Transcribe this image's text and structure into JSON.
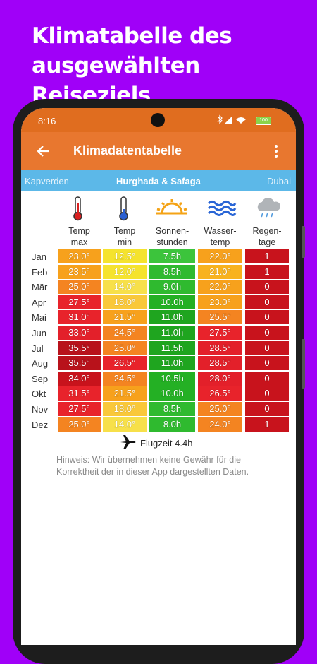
{
  "promo": {
    "headline": [
      "Klimatabelle des",
      "ausgewählten Reiseziels"
    ]
  },
  "status_bar": {
    "time": "8:16",
    "battery": "100"
  },
  "app_bar": {
    "title": "Klimadatentabelle"
  },
  "tabs": [
    "Kapverden",
    "Hurghada & Safaga",
    "Dubai"
  ],
  "table": {
    "columns": [
      [
        "Temp",
        "max"
      ],
      [
        "Temp",
        "min"
      ],
      [
        "Sonnen-",
        "stunden"
      ],
      [
        "Wasser-",
        "temp"
      ],
      [
        "Regen-",
        "tage"
      ]
    ],
    "rows": [
      {
        "month": "Jan",
        "cells": [
          "23.0°",
          "12.5°",
          "7.5h",
          "22.0°",
          "1"
        ],
        "colors": [
          "#f7a11c",
          "#f5e32e",
          "#3cc43c",
          "#f7a11c",
          "#c8131c"
        ]
      },
      {
        "month": "Feb",
        "cells": [
          "23.5°",
          "12.0°",
          "8.5h",
          "21.0°",
          "1"
        ],
        "colors": [
          "#f7a11c",
          "#f5e32e",
          "#2fba2f",
          "#f8b21e",
          "#c8131c"
        ]
      },
      {
        "month": "Mär",
        "cells": [
          "25.0°",
          "14.0°",
          "9.0h",
          "22.0°",
          "0"
        ],
        "colors": [
          "#f48421",
          "#f7e04a",
          "#2fba2f",
          "#f7a11c",
          "#c8131c"
        ]
      },
      {
        "month": "Apr",
        "cells": [
          "27.5°",
          "18.0°",
          "10.0h",
          "23.0°",
          "0"
        ],
        "colors": [
          "#e8232b",
          "#f9c83a",
          "#24b024",
          "#f7a11c",
          "#c8131c"
        ]
      },
      {
        "month": "Mai",
        "cells": [
          "31.0°",
          "21.5°",
          "11.0h",
          "25.5°",
          "0"
        ],
        "colors": [
          "#e8232b",
          "#f7a11c",
          "#1fa51f",
          "#f48421",
          "#c8131c"
        ]
      },
      {
        "month": "Jun",
        "cells": [
          "33.0°",
          "24.5°",
          "11.0h",
          "27.5°",
          "0"
        ],
        "colors": [
          "#e3202a",
          "#f48421",
          "#1fa51f",
          "#e8232b",
          "#c8131c"
        ]
      },
      {
        "month": "Jul",
        "cells": [
          "35.5°",
          "25.0°",
          "11.5h",
          "28.5°",
          "0"
        ],
        "colors": [
          "#b8121b",
          "#f48421",
          "#1fa51f",
          "#e3202a",
          "#c8131c"
        ]
      },
      {
        "month": "Aug",
        "cells": [
          "35.5°",
          "26.5°",
          "11.0h",
          "28.5°",
          "0"
        ],
        "colors": [
          "#b8121b",
          "#e8232b",
          "#1fa51f",
          "#e3202a",
          "#c8131c"
        ]
      },
      {
        "month": "Sep",
        "cells": [
          "34.0°",
          "24.5°",
          "10.5h",
          "28.0°",
          "0"
        ],
        "colors": [
          "#c8131c",
          "#f48421",
          "#24b024",
          "#e3202a",
          "#c8131c"
        ]
      },
      {
        "month": "Okt",
        "cells": [
          "31.5°",
          "21.5°",
          "10.0h",
          "26.5°",
          "0"
        ],
        "colors": [
          "#e8232b",
          "#f7a11c",
          "#24b024",
          "#e8232b",
          "#c8131c"
        ]
      },
      {
        "month": "Nov",
        "cells": [
          "27.5°",
          "18.0°",
          "8.5h",
          "25.0°",
          "0"
        ],
        "colors": [
          "#e8232b",
          "#f9c83a",
          "#2fba2f",
          "#f48421",
          "#c8131c"
        ]
      },
      {
        "month": "Dez",
        "cells": [
          "25.0°",
          "14.0°",
          "8.0h",
          "24.0°",
          "1"
        ],
        "colors": [
          "#f48421",
          "#f7e04a",
          "#2fba2f",
          "#f48421",
          "#c8131c"
        ]
      }
    ]
  },
  "flight": "Flugzeit 4.4h",
  "note": "Hinweis: Wir übernehmen keine Gewähr für die Korrektheit der in dieser App dargestellten Daten."
}
